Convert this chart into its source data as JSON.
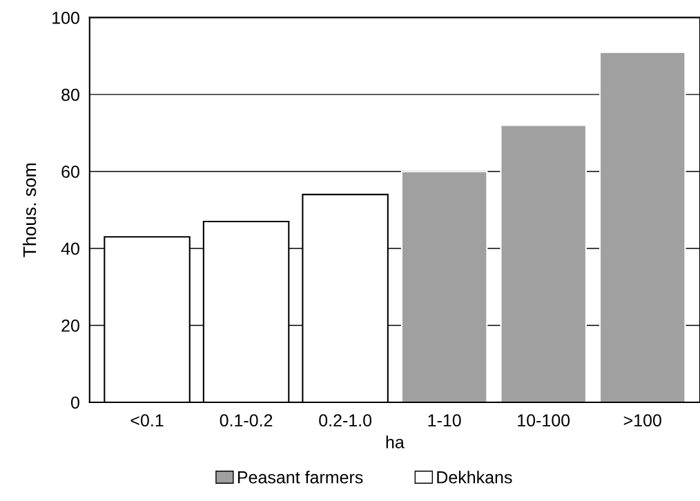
{
  "chart_data": {
    "type": "bar",
    "xlabel": "ha",
    "ylabel": "Thous. som",
    "categories": [
      "<0.1",
      "0.1-0.2",
      "0.2-1.0",
      "1-10",
      "10-100",
      ">100"
    ],
    "series": [
      {
        "name": "Peasant farmers",
        "color": "#a0a0a0",
        "values": [
          null,
          null,
          null,
          60,
          72,
          91
        ]
      },
      {
        "name": "Dekhkans",
        "color": "#ffffff",
        "values": [
          43,
          47,
          54,
          null,
          null,
          null
        ]
      }
    ],
    "ylim": [
      0,
      100
    ],
    "yticks": [
      0,
      20,
      40,
      60,
      80,
      100
    ],
    "grid": "y",
    "legend": "bottom"
  }
}
